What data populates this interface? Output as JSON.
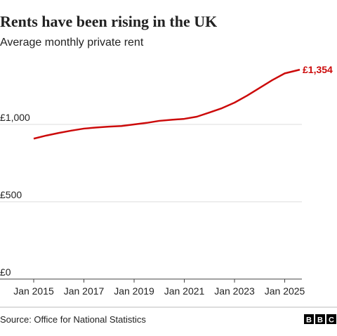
{
  "chart_data": {
    "type": "line",
    "title": "Rents have been rising in the UK",
    "subtitle": "Average monthly private rent",
    "source": "Source: Office for National Statistics",
    "logo": [
      "B",
      "B",
      "C"
    ],
    "x": [
      2015,
      2015.5,
      2016,
      2016.5,
      2017,
      2017.5,
      2018,
      2018.5,
      2019,
      2019.5,
      2020,
      2020.5,
      2021,
      2021.5,
      2022,
      2022.5,
      2023,
      2023.5,
      2024,
      2024.5,
      2025,
      2025.6
    ],
    "series": [
      {
        "name": "Average monthly private rent",
        "color": "#cc0a0a",
        "values": [
          908,
          928,
          945,
          960,
          973,
          980,
          986,
          990,
          1000,
          1010,
          1023,
          1030,
          1036,
          1050,
          1077,
          1105,
          1141,
          1186,
          1236,
          1286,
          1330,
          1354
        ],
        "value_labels": [
          null,
          null,
          null,
          null,
          null,
          null,
          null,
          null,
          null,
          null,
          null,
          null,
          null,
          null,
          null,
          null,
          null,
          null,
          null,
          null,
          null,
          "£1,354"
        ]
      }
    ],
    "xlim": [
      2015,
      2025.6
    ],
    "xticks": [
      {
        "value": 2015,
        "label": "Jan 2015"
      },
      {
        "value": 2017,
        "label": "Jan 2017"
      },
      {
        "value": 2019,
        "label": "Jan 2019"
      },
      {
        "value": 2021,
        "label": "Jan 2021"
      },
      {
        "value": 2023,
        "label": "Jan 2023"
      },
      {
        "value": 2025,
        "label": "Jan 2025"
      }
    ],
    "ylim": [
      0,
      1400
    ],
    "yticks": [
      {
        "value": 0,
        "label": "£0"
      },
      {
        "value": 500,
        "label": "£500"
      },
      {
        "value": 1000,
        "label": "£1,000"
      }
    ],
    "grid": true
  }
}
